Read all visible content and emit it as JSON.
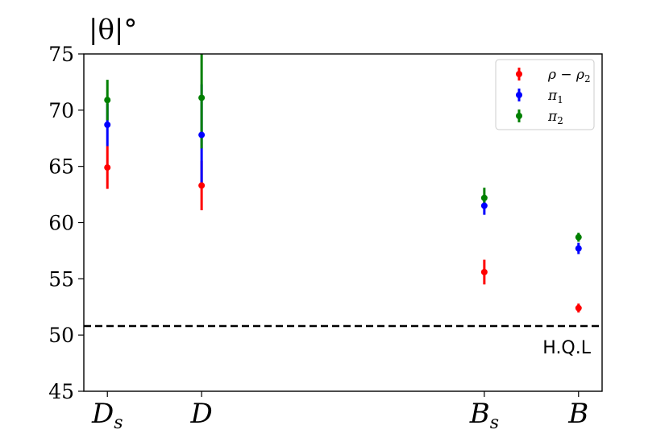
{
  "chart_data": {
    "type": "scatter",
    "title": "",
    "ylabel": "|θ|°",
    "ylim": [
      45,
      75
    ],
    "yticks": [
      45,
      50,
      55,
      60,
      65,
      70,
      75
    ],
    "categories": [
      {
        "base": "D",
        "sub": "s"
      },
      {
        "base": "D",
        "sub": ""
      },
      {
        "base": "B",
        "sub": "s"
      },
      {
        "base": "B",
        "sub": ""
      }
    ],
    "x_positions": [
      0,
      1,
      4,
      5
    ],
    "xlim": [
      -0.25,
      5.25
    ],
    "grid": false,
    "legend_position": "top-right",
    "series": [
      {
        "name": "ρ − ρ",
        "name_sub": "2",
        "color": "#ff0000",
        "values": [
          64.9,
          63.3,
          55.6,
          52.4
        ],
        "errors": [
          1.9,
          2.2,
          1.1,
          0.4
        ]
      },
      {
        "name": "π",
        "name_sub": "1",
        "color": "#0000ff",
        "values": [
          68.7,
          67.8,
          61.5,
          57.7
        ],
        "errors": [
          1.9,
          4.5,
          0.8,
          0.5
        ]
      },
      {
        "name": "π",
        "name_sub": "2",
        "color": "#008000",
        "values": [
          70.9,
          71.1,
          62.2,
          58.7
        ],
        "errors": [
          1.8,
          4.5,
          0.9,
          0.4
        ]
      }
    ],
    "reference_line": {
      "y": 50.8,
      "label": "H.Q.L",
      "style": "dashed",
      "color": "#000000"
    }
  }
}
